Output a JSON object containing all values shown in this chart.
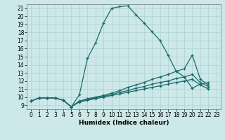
{
  "xlabel": "Humidex (Indice chaleur)",
  "xlim": [
    -0.5,
    23.5
  ],
  "ylim": [
    8.5,
    21.5
  ],
  "xticks": [
    0,
    1,
    2,
    3,
    4,
    5,
    6,
    7,
    8,
    9,
    10,
    11,
    12,
    13,
    14,
    15,
    16,
    17,
    18,
    19,
    20,
    21,
    22,
    23
  ],
  "yticks": [
    9,
    10,
    11,
    12,
    13,
    14,
    15,
    16,
    17,
    18,
    19,
    20,
    21
  ],
  "bg_color": "#cce8e8",
  "line_color": "#1a6b6b",
  "grid_color": "#b0d0d0",
  "lines": [
    {
      "x": [
        0,
        1,
        2,
        3,
        4,
        5,
        6,
        7,
        8,
        9,
        10,
        11,
        12,
        13,
        14,
        15,
        16,
        17,
        18,
        19,
        20,
        21,
        22
      ],
      "y": [
        9.5,
        9.9,
        9.9,
        9.9,
        9.6,
        8.8,
        10.3,
        14.8,
        16.7,
        19.2,
        21.0,
        21.2,
        21.3,
        20.2,
        19.2,
        18.1,
        17.0,
        15.2,
        13.2,
        12.5,
        11.1,
        11.6,
        11.8
      ]
    },
    {
      "x": [
        0,
        1,
        2,
        3,
        4,
        5,
        6,
        7,
        8,
        9,
        10,
        11,
        12,
        13,
        14,
        15,
        16,
        17,
        18,
        19,
        20,
        21,
        22
      ],
      "y": [
        9.5,
        9.9,
        9.9,
        9.9,
        9.6,
        8.8,
        9.5,
        9.8,
        10.0,
        10.2,
        10.5,
        10.8,
        11.2,
        11.5,
        11.8,
        12.2,
        12.5,
        12.8,
        13.2,
        13.5,
        15.2,
        12.2,
        11.5
      ]
    },
    {
      "x": [
        0,
        1,
        2,
        3,
        4,
        5,
        6,
        7,
        8,
        9,
        10,
        11,
        12,
        13,
        14,
        15,
        16,
        17,
        18,
        19,
        20,
        21,
        22
      ],
      "y": [
        9.5,
        9.9,
        9.9,
        9.9,
        9.6,
        8.8,
        9.5,
        9.7,
        9.9,
        10.1,
        10.3,
        10.6,
        10.8,
        11.1,
        11.3,
        11.6,
        11.8,
        12.0,
        12.3,
        12.5,
        12.8,
        11.8,
        11.3
      ]
    },
    {
      "x": [
        0,
        1,
        2,
        3,
        4,
        5,
        6,
        7,
        8,
        9,
        10,
        11,
        12,
        13,
        14,
        15,
        16,
        17,
        18,
        19,
        20,
        21,
        22
      ],
      "y": [
        9.5,
        9.9,
        9.9,
        9.9,
        9.6,
        8.8,
        9.4,
        9.6,
        9.8,
        10.0,
        10.2,
        10.4,
        10.6,
        10.8,
        11.0,
        11.2,
        11.4,
        11.6,
        11.8,
        12.0,
        12.2,
        11.5,
        11.0
      ]
    }
  ]
}
